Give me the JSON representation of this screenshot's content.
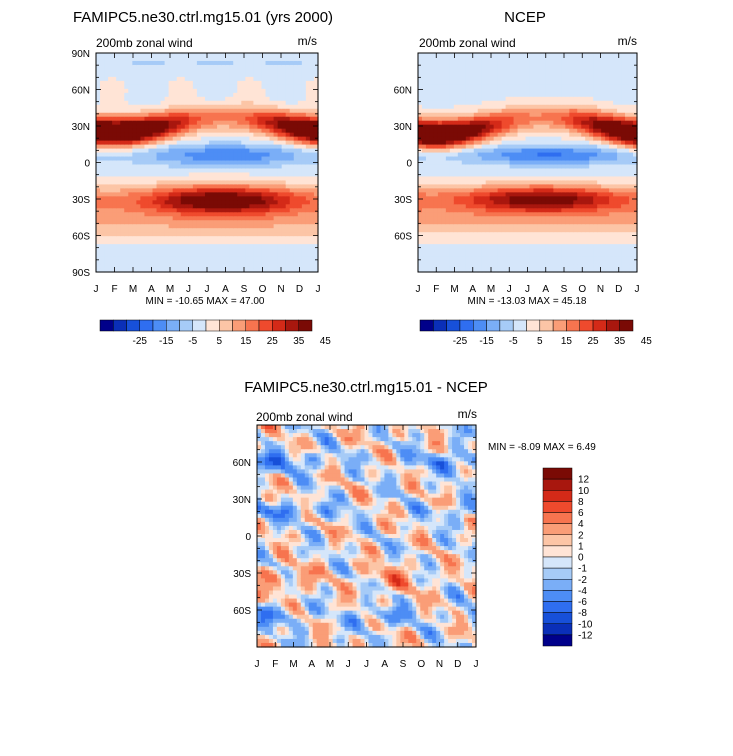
{
  "chart_data": [
    {
      "type": "heatmap",
      "title": "FAMIPC5.ne30.ctrl.mg15.01 (yrs 2000)",
      "subtitle_left": "200mb zonal wind",
      "subtitle_right": "m/s",
      "x_ticks": [
        "J",
        "F",
        "M",
        "A",
        "M",
        "J",
        "J",
        "A",
        "S",
        "O",
        "N",
        "D",
        "J"
      ],
      "y_ticks": [
        "90N",
        "60N",
        "30N",
        "0",
        "30S",
        "60S",
        "90S"
      ],
      "stats_text": "MIN = -10.65  MAX =  47.00",
      "min": -10.65,
      "max": 47.0,
      "colorbar": {
        "orientation": "horizontal",
        "labels": [
          "-25",
          "-15",
          "-5",
          "5",
          "15",
          "25",
          "35",
          "45"
        ],
        "colors": [
          "#00008a",
          "#0a2fb8",
          "#1750d9",
          "#2f6ef0",
          "#4d8df5",
          "#7aaef7",
          "#a6cbf7",
          "#d5e6fa",
          "#ffe4d6",
          "#fcc5a6",
          "#fa9d77",
          "#f7744f",
          "#ef4a2d",
          "#d42a18",
          "#a8170e",
          "#7a0a05"
        ]
      }
    },
    {
      "type": "heatmap",
      "title": "NCEP",
      "subtitle_left": "200mb zonal wind",
      "subtitle_right": "m/s",
      "x_ticks": [
        "J",
        "F",
        "M",
        "A",
        "M",
        "J",
        "J",
        "A",
        "S",
        "O",
        "N",
        "D",
        "J"
      ],
      "y_ticks": [
        "60N",
        "30N",
        "0",
        "30S",
        "60S"
      ],
      "stats_text": "MIN = -13.03  MAX =  45.18",
      "min": -13.03,
      "max": 45.18,
      "colorbar": {
        "orientation": "horizontal",
        "labels": [
          "-25",
          "-15",
          "-5",
          "5",
          "15",
          "25",
          "35",
          "45"
        ],
        "colors": [
          "#00008a",
          "#0a2fb8",
          "#1750d9",
          "#2f6ef0",
          "#4d8df5",
          "#7aaef7",
          "#a6cbf7",
          "#d5e6fa",
          "#ffe4d6",
          "#fcc5a6",
          "#fa9d77",
          "#f7744f",
          "#ef4a2d",
          "#d42a18",
          "#a8170e",
          "#7a0a05"
        ]
      }
    },
    {
      "type": "heatmap",
      "title": "FAMIPC5.ne30.ctrl.mg15.01 - NCEP",
      "subtitle_left": "200mb zonal wind",
      "subtitle_right": "m/s",
      "x_ticks": [
        "J",
        "F",
        "M",
        "A",
        "M",
        "J",
        "J",
        "A",
        "S",
        "O",
        "N",
        "D",
        "J"
      ],
      "y_ticks": [
        "60N",
        "30N",
        "0",
        "30S",
        "60S"
      ],
      "stats_text": "MIN =  -8.09  MAX =   6.49",
      "min": -8.09,
      "max": 6.49,
      "colorbar": {
        "orientation": "vertical",
        "labels": [
          "12",
          "10",
          "8",
          "6",
          "4",
          "2",
          "1",
          "0",
          "-1",
          "-2",
          "-4",
          "-6",
          "-8",
          "-10",
          "-12"
        ],
        "colors": [
          "#7a0a05",
          "#a8170e",
          "#d42a18",
          "#ef4a2d",
          "#f7744f",
          "#fa9d77",
          "#fcc5a6",
          "#ffe4d6",
          "#d5e6fa",
          "#a6cbf7",
          "#7aaef7",
          "#4d8df5",
          "#2f6ef0",
          "#1750d9",
          "#0a2fb8",
          "#00008a"
        ]
      }
    }
  ]
}
